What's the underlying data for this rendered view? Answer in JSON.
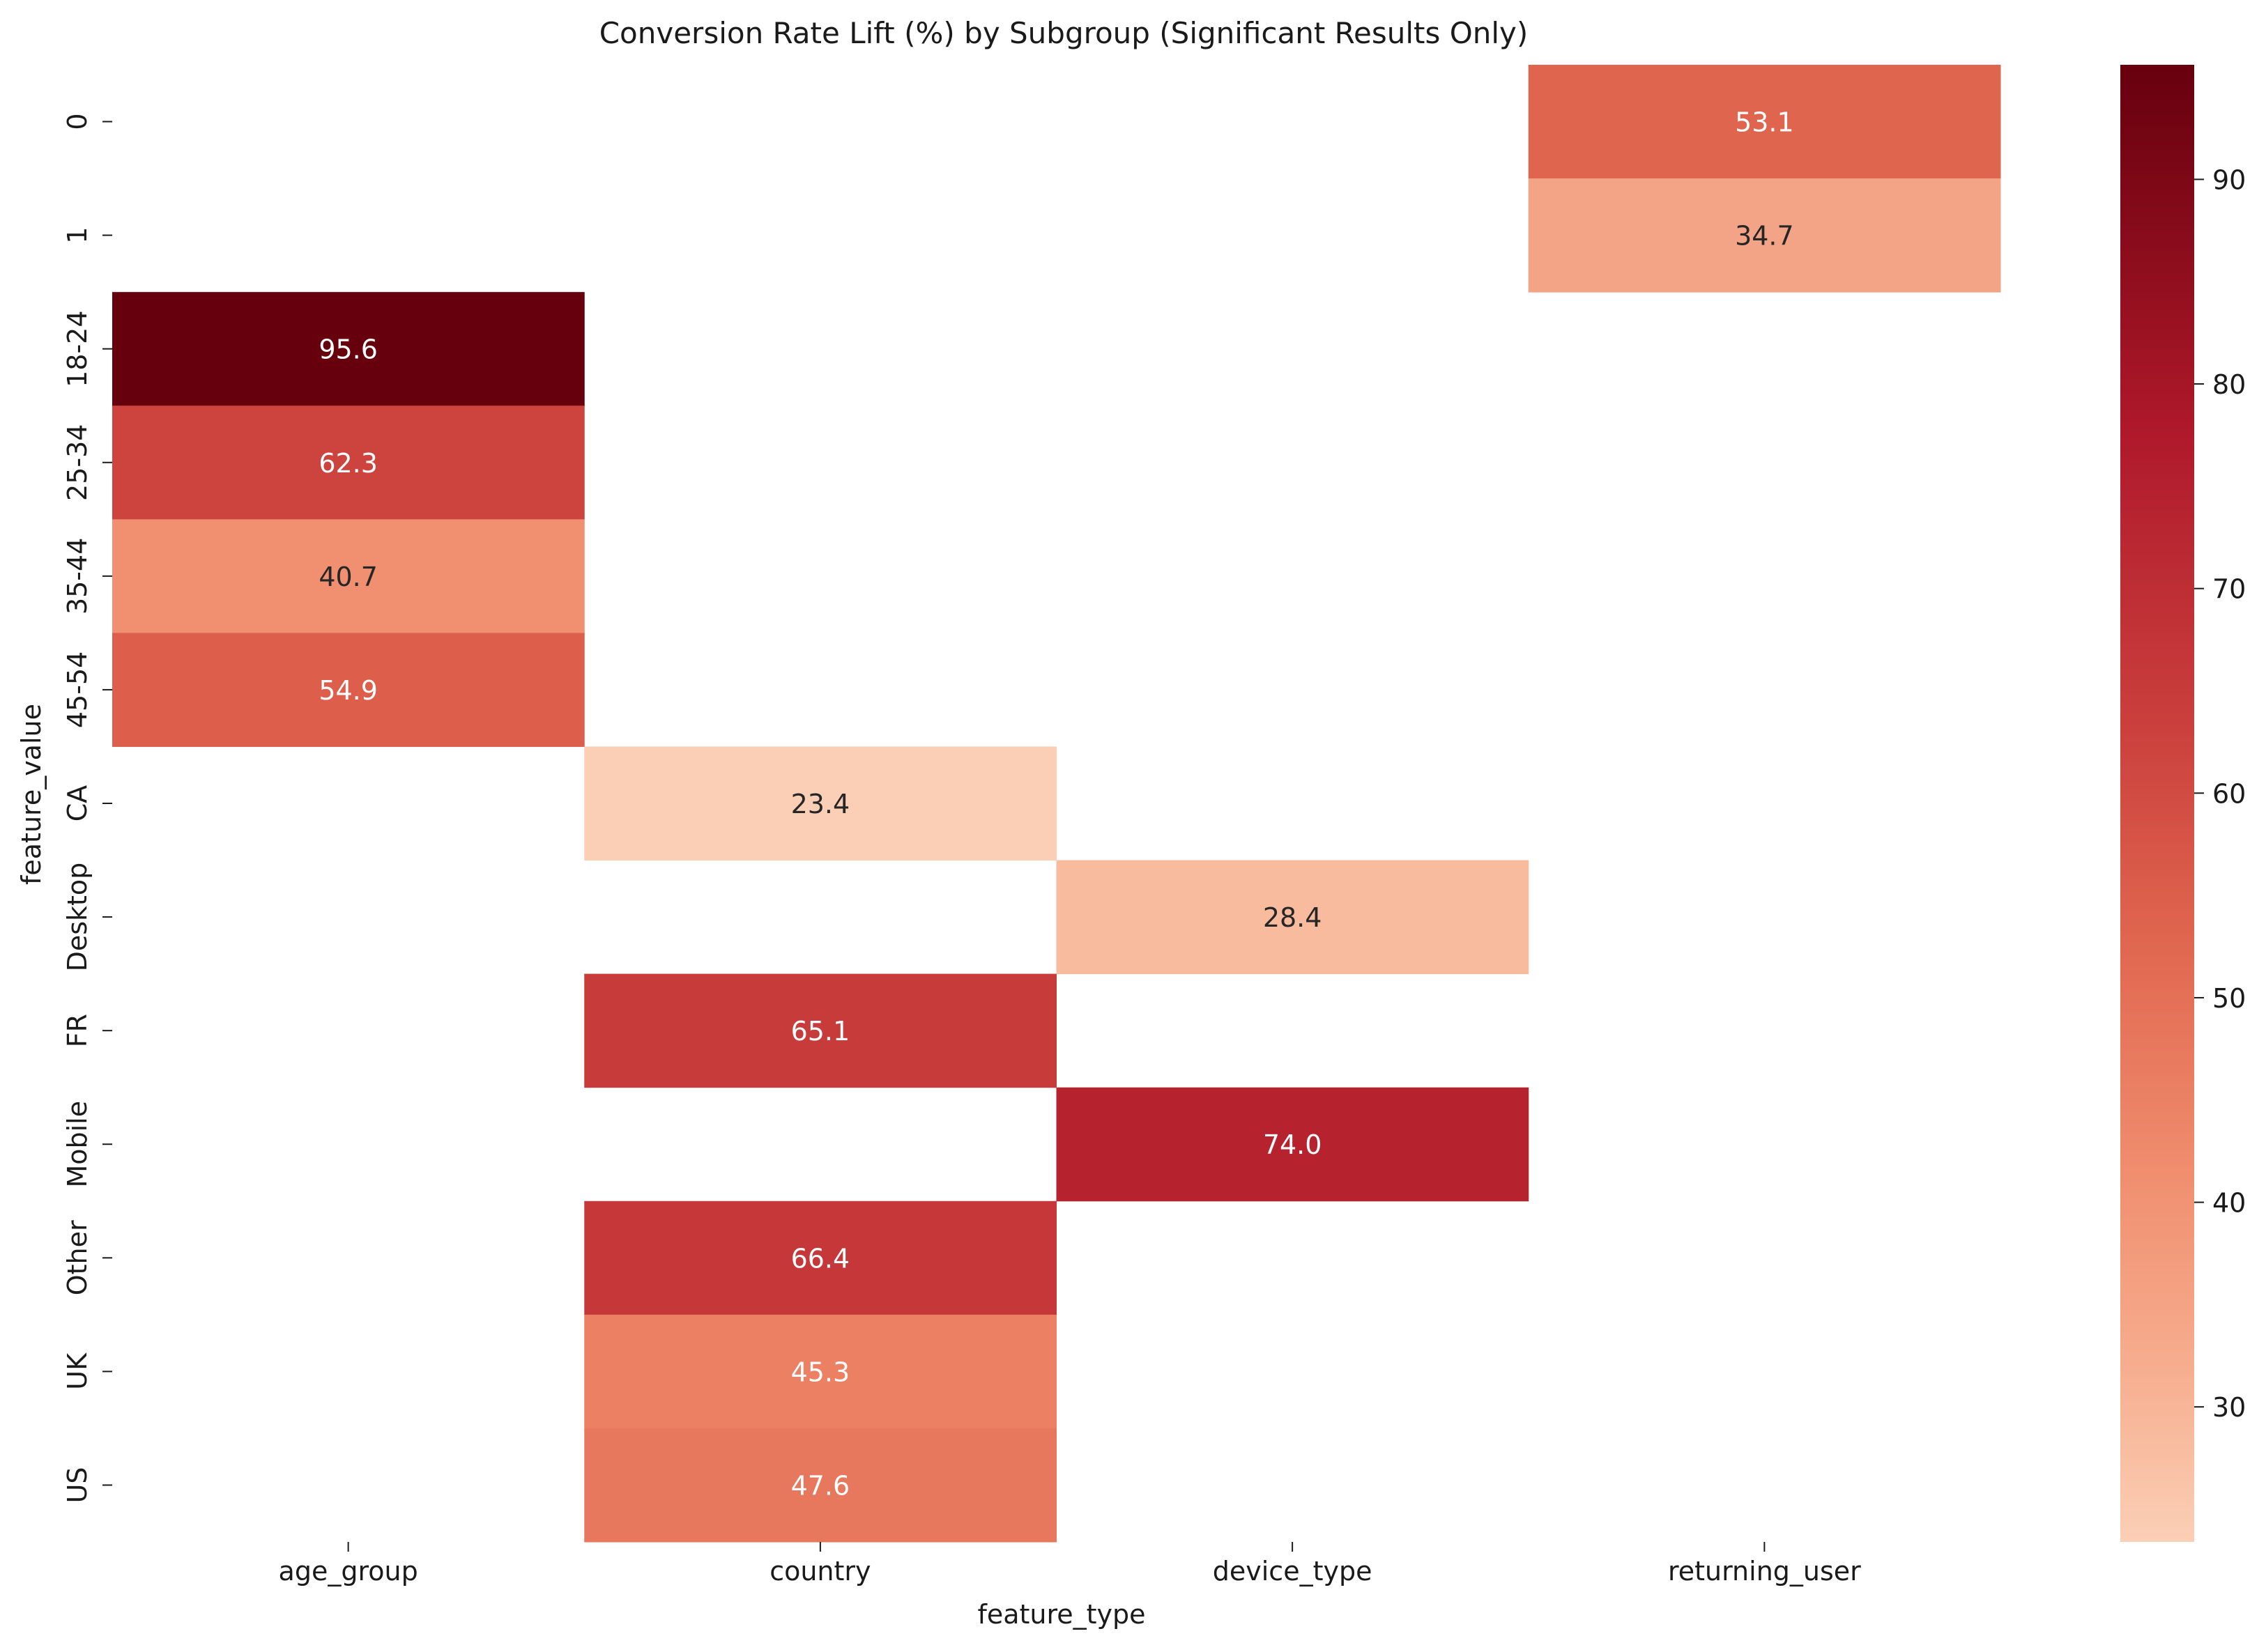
{
  "chart_data": {
    "type": "heatmap",
    "title": "Conversion Rate Lift (%) by Subgroup (Significant Results Only)",
    "xlabel": "feature_type",
    "ylabel": "feature_value",
    "x_categories": [
      "age_group",
      "country",
      "device_type",
      "returning_user"
    ],
    "y_categories": [
      "0",
      "1",
      "18-24",
      "25-34",
      "35-44",
      "45-54",
      "CA",
      "Desktop",
      "FR",
      "Mobile",
      "Other",
      "UK",
      "US"
    ],
    "cells": [
      {
        "x": "returning_user",
        "y": "0",
        "value": 53.1,
        "label": "53.1"
      },
      {
        "x": "returning_user",
        "y": "1",
        "value": 34.7,
        "label": "34.7"
      },
      {
        "x": "age_group",
        "y": "18-24",
        "value": 95.6,
        "label": "95.6"
      },
      {
        "x": "age_group",
        "y": "25-34",
        "value": 62.3,
        "label": "62.3"
      },
      {
        "x": "age_group",
        "y": "35-44",
        "value": 40.7,
        "label": "40.7"
      },
      {
        "x": "age_group",
        "y": "45-54",
        "value": 54.9,
        "label": "54.9"
      },
      {
        "x": "country",
        "y": "CA",
        "value": 23.4,
        "label": "23.4"
      },
      {
        "x": "device_type",
        "y": "Desktop",
        "value": 28.4,
        "label": "28.4"
      },
      {
        "x": "country",
        "y": "FR",
        "value": 65.1,
        "label": "65.1"
      },
      {
        "x": "device_type",
        "y": "Mobile",
        "value": 74.0,
        "label": "74.0"
      },
      {
        "x": "country",
        "y": "Other",
        "value": 66.4,
        "label": "66.4"
      },
      {
        "x": "country",
        "y": "UK",
        "value": 45.3,
        "label": "45.3"
      },
      {
        "x": "country",
        "y": "US",
        "value": 47.6,
        "label": "47.6"
      }
    ],
    "colorbar": {
      "colormap": "Reds",
      "vmin": 23.4,
      "vmax": 95.6,
      "ticks": [
        "30",
        "40",
        "50",
        "60",
        "70",
        "80",
        "90"
      ],
      "colors": {
        "low": "#fbcfb6",
        "high": "#67000d"
      }
    },
    "grid": false
  }
}
